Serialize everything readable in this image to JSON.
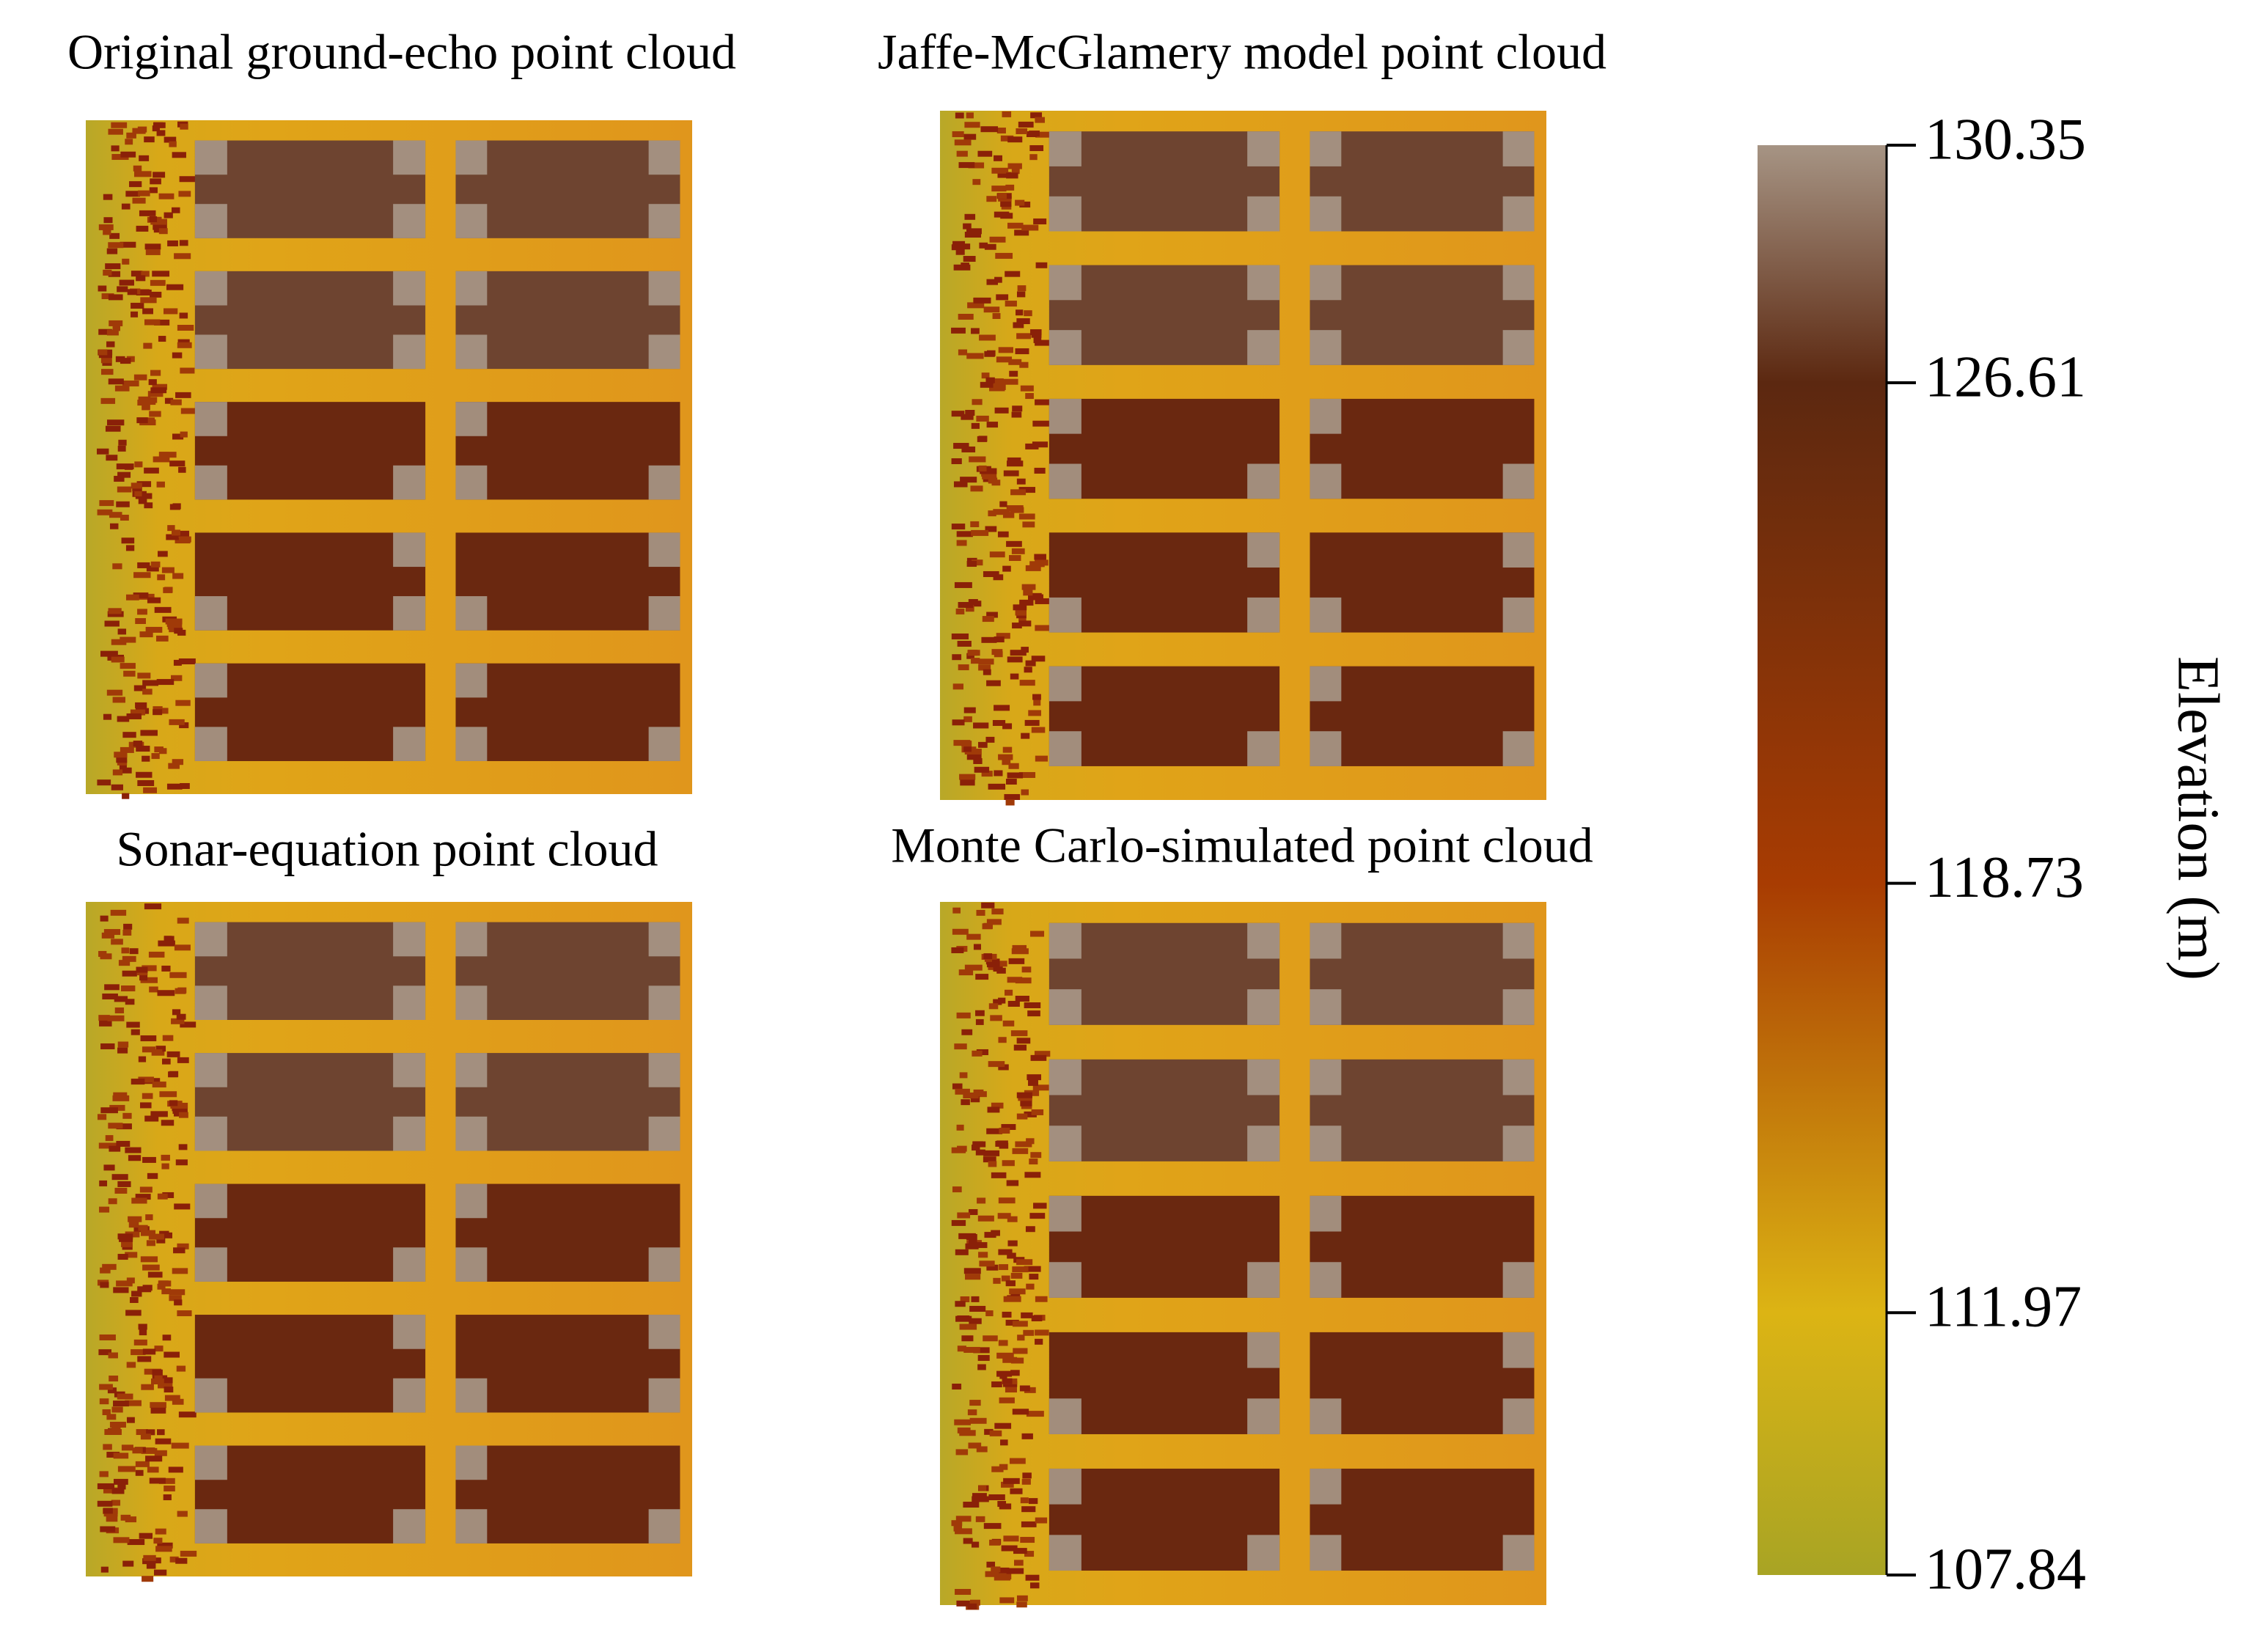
{
  "panels": [
    {
      "title": "Original ground-echo point cloud"
    },
    {
      "title": "Jaffe-McGlamery model point cloud"
    },
    {
      "title": "Sonar-equation point cloud"
    },
    {
      "title": "Monte Carlo-simulated point cloud"
    }
  ],
  "colorbar": {
    "label": "Elevation (m)",
    "lim": [
      107.84,
      130.35
    ],
    "ticks": [
      130.35,
      126.61,
      118.73,
      111.97,
      107.84
    ],
    "colors": [
      "#a69484",
      "#5c2810",
      "#a83c02",
      "#dcb414",
      "#a8a424"
    ]
  }
}
